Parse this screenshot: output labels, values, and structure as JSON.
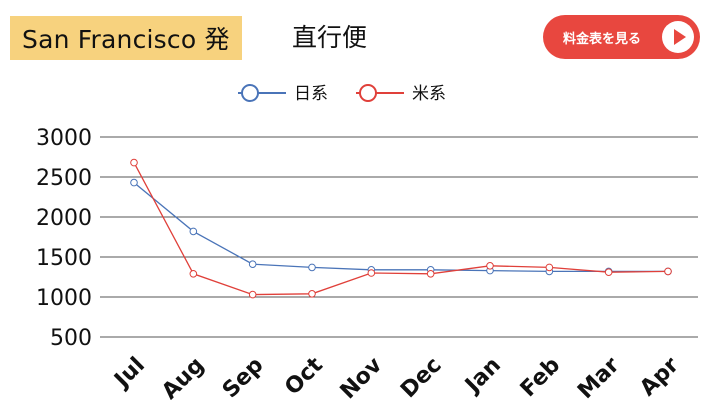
{
  "header": {
    "title_main": "San Francisco 発",
    "title_sub": "直行便",
    "price_button_label": "料金表を見る"
  },
  "chart_data": {
    "type": "line",
    "title": "",
    "xlabel": "",
    "ylabel": "",
    "categories": [
      "Jul",
      "Aug",
      "Sep",
      "Oct",
      "Nov",
      "Dec",
      "Jan",
      "Feb",
      "Mar",
      "Apr"
    ],
    "yticks": [
      3000,
      2500,
      2000,
      1500,
      1000,
      500
    ],
    "ylim": [
      500,
      3000
    ],
    "grid": true,
    "legend_position": "top-center",
    "series": [
      {
        "name": "日系",
        "color": "#4a74b8",
        "values": [
          2430,
          1820,
          1410,
          1370,
          1340,
          1340,
          1330,
          1320,
          1320,
          1320
        ]
      },
      {
        "name": "米系",
        "color": "#e0403a",
        "values": [
          2680,
          1290,
          1030,
          1040,
          1300,
          1290,
          1390,
          1370,
          1310,
          1320
        ]
      }
    ]
  }
}
